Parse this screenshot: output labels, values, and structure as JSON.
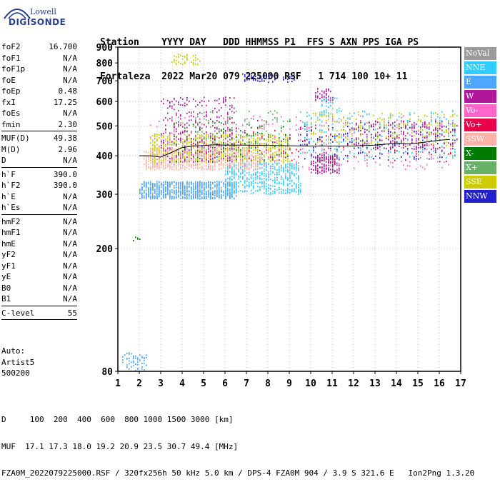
{
  "logo": {
    "top": "Lowell",
    "main": "DIGISONDE"
  },
  "header": {
    "row1": "Station    YYYY DAY   DDD HHMMSS P1  FFS S AXN PPS IGA PS",
    "row2": "Fortaleza  2022 Mar20 079 225000 RSF   1 714 100 10+ 11"
  },
  "params": {
    "group1": [
      {
        "key": "foF2",
        "value": "16.700"
      },
      {
        "key": "foF1",
        "value": "N/A"
      },
      {
        "key": "foF1p",
        "value": "N/A"
      },
      {
        "key": "foE",
        "value": "N/A"
      },
      {
        "key": "foEp",
        "value": "0.48"
      },
      {
        "key": "fxI",
        "value": "17.25"
      },
      {
        "key": "foEs",
        "value": "N/A"
      },
      {
        "key": "fmin",
        "value": "2.30"
      }
    ],
    "group2": [
      {
        "key": "MUF(D)",
        "value": "49.38"
      },
      {
        "key": "M(D)",
        "value": "2.96"
      },
      {
        "key": "D",
        "value": "N/A"
      }
    ],
    "group3": [
      {
        "key": "h`F",
        "value": "390.0"
      },
      {
        "key": "h`F2",
        "value": "390.0"
      },
      {
        "key": "h`E",
        "value": "N/A"
      },
      {
        "key": "h`Es",
        "value": "N/A"
      }
    ],
    "group4": [
      {
        "key": "hmF2",
        "value": "N/A"
      },
      {
        "key": "hmF1",
        "value": "N/A"
      },
      {
        "key": "hmE",
        "value": "N/A"
      },
      {
        "key": "yF2",
        "value": "N/A"
      },
      {
        "key": "yF1",
        "value": "N/A"
      },
      {
        "key": "yE",
        "value": "N/A"
      },
      {
        "key": "B0",
        "value": "N/A"
      },
      {
        "key": "B1",
        "value": "N/A"
      }
    ],
    "group5": [
      {
        "key": "C-level",
        "value": "55"
      }
    ]
  },
  "auto": {
    "line1": "Auto:",
    "line2": "Artist5",
    "line3": "500200"
  },
  "footer": {
    "row1": "D     100  200  400  600  800 1000 1500 3000 [km]",
    "row2": "MUF  17.1 17.3 18.0 19.2 20.9 23.5 30.7 49.4 [MHz]",
    "row3": "FZA0M_2022079225000.RSF / 320fx256h 50 kHz 5.0 km / DPS-4 FZA0M 904 / 3.9 S 321.6 E   Ion2Png 1.3.20"
  },
  "legend": [
    {
      "label": "NoVal",
      "bg": "#9b9b9b",
      "fg": "#ffffff"
    },
    {
      "label": "NNE",
      "bg": "#33ccff",
      "fg": "#ffffff"
    },
    {
      "label": "E",
      "bg": "#4da6ff",
      "fg": "#ffffff"
    },
    {
      "label": "W",
      "bg": "#b0179b",
      "fg": "#ffffff"
    },
    {
      "label": "Vo-",
      "bg": "#ff66cc",
      "fg": "#ffffff"
    },
    {
      "label": "Vo+",
      "bg": "#e8004a",
      "fg": "#ffffff"
    },
    {
      "label": "SSW",
      "bg": "#ffb3a6",
      "fg": "#ffffff"
    },
    {
      "label": "X-",
      "bg": "#007a00",
      "fg": "#ffffff"
    },
    {
      "label": "X+",
      "bg": "#66b366",
      "fg": "#ffffff"
    },
    {
      "label": "SSE",
      "bg": "#cccc00",
      "fg": "#ffffff"
    },
    {
      "label": "NNW",
      "bg": "#2222cc",
      "fg": "#ffffff"
    }
  ],
  "chart_data": {
    "type": "scatter",
    "title": "",
    "xlabel": "",
    "ylabel": "",
    "xlim": [
      1,
      17
    ],
    "ylim": [
      80,
      900
    ],
    "x_ticks": [
      "1",
      "2",
      "3",
      "4",
      "5",
      "6",
      "7",
      "8",
      "9",
      "10",
      "11",
      "12",
      "13",
      "14",
      "15",
      "16",
      "17"
    ],
    "y_ticks": [
      "80",
      "200",
      "300",
      "400",
      "500",
      "600",
      "700",
      "800",
      "900"
    ],
    "y_tick_values": [
      80,
      200,
      300,
      400,
      500,
      600,
      700,
      800,
      900
    ],
    "grid": true,
    "scale_y": "log",
    "trace_line": {
      "name": "",
      "color": "#000000",
      "points": [
        [
          2.0,
          400
        ],
        [
          2.5,
          400
        ],
        [
          3.0,
          396
        ],
        [
          3.5,
          410
        ],
        [
          4.0,
          425
        ],
        [
          4.5,
          430
        ],
        [
          5.0,
          432
        ],
        [
          5.5,
          434
        ],
        [
          6.0,
          433
        ],
        [
          7.0,
          433
        ],
        [
          8.0,
          432
        ],
        [
          9.0,
          431
        ],
        [
          10.0,
          430
        ],
        [
          11.0,
          430
        ],
        [
          12.0,
          430
        ],
        [
          12.5,
          432
        ],
        [
          13.0,
          433
        ],
        [
          13.5,
          436
        ],
        [
          14.0,
          440
        ],
        [
          14.5,
          437
        ],
        [
          15.0,
          440
        ],
        [
          15.5,
          444
        ],
        [
          16.0,
          449
        ],
        [
          16.5,
          452
        ]
      ]
    },
    "echo_clusters": [
      {
        "color": "#4da6ff",
        "x": [
          2.0,
          6.5
        ],
        "y": [
          290,
          330
        ],
        "density": 900
      },
      {
        "color": "#33ccff",
        "x": [
          6.0,
          9.5
        ],
        "y": [
          300,
          380
        ],
        "density": 500
      },
      {
        "color": "#ffb3a6",
        "x": [
          2.2,
          7.5
        ],
        "y": [
          360,
          420
        ],
        "density": 700
      },
      {
        "color": "#cccc00",
        "x": [
          2.5,
          9.0
        ],
        "y": [
          380,
          470
        ],
        "density": 700
      },
      {
        "color": "#b0179b",
        "x": [
          3.0,
          6.5
        ],
        "y": [
          380,
          620
        ],
        "density": 300
      },
      {
        "color": "#ff66cc",
        "x": [
          2.5,
          16.8
        ],
        "y": [
          360,
          540
        ],
        "density": 350
      },
      {
        "color": "#e8004a",
        "x": [
          3.5,
          16.8
        ],
        "y": [
          380,
          520
        ],
        "density": 200
      },
      {
        "color": "#007a00",
        "x": [
          3.5,
          9.0
        ],
        "y": [
          380,
          520
        ],
        "density": 120
      },
      {
        "color": "#66b366",
        "x": [
          3.5,
          9.0
        ],
        "y": [
          390,
          560
        ],
        "density": 120
      },
      {
        "color": "#2222cc",
        "x": [
          9.5,
          16.8
        ],
        "y": [
          390,
          500
        ],
        "density": 180
      },
      {
        "color": "#33ccff",
        "x": [
          9.5,
          16.8
        ],
        "y": [
          390,
          560
        ],
        "density": 250
      },
      {
        "color": "#b0179b",
        "x": [
          10.0,
          11.3
        ],
        "y": [
          350,
          400
        ],
        "density": 150
      },
      {
        "color": "#b0179b",
        "x": [
          12.0,
          16.8
        ],
        "y": [
          420,
          520
        ],
        "density": 200
      },
      {
        "color": "#cccc00",
        "x": [
          10.0,
          16.8
        ],
        "y": [
          430,
          560
        ],
        "density": 200
      },
      {
        "color": "#4da6ff",
        "x": [
          1.2,
          2.3
        ],
        "y": [
          80,
          92
        ],
        "density": 60
      },
      {
        "color": "#2222cc",
        "x": [
          6.8,
          9.3
        ],
        "y": [
          690,
          740
        ],
        "density": 60
      },
      {
        "color": "#cccc00",
        "x": [
          3.5,
          4.8
        ],
        "y": [
          790,
          860
        ],
        "density": 40
      },
      {
        "color": "#b0179b",
        "x": [
          10.1,
          11.0
        ],
        "y": [
          600,
          660
        ],
        "density": 50
      },
      {
        "color": "#33ccff",
        "x": [
          10.5,
          11.3
        ],
        "y": [
          550,
          620
        ],
        "density": 30
      },
      {
        "color": "#007a00",
        "x": [
          1.7,
          2.0
        ],
        "y": [
          212,
          218
        ],
        "density": 6
      }
    ]
  }
}
